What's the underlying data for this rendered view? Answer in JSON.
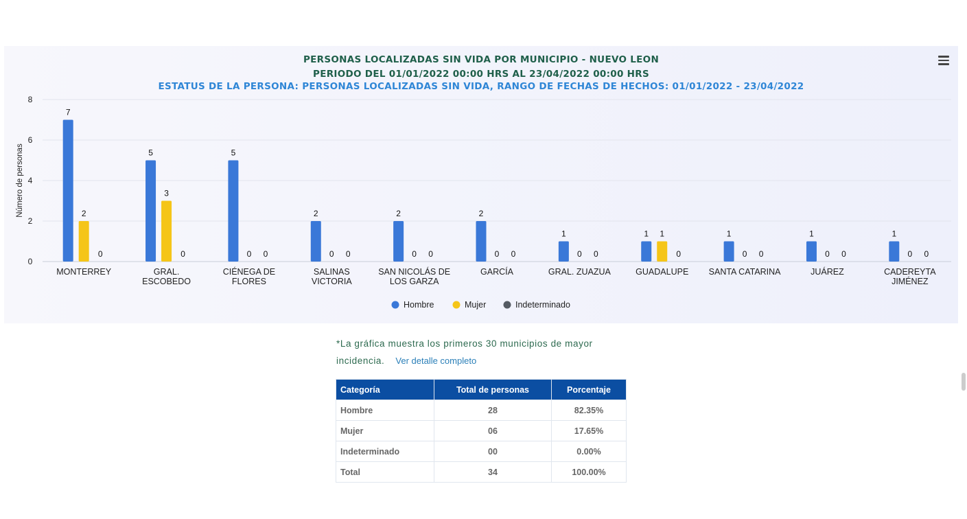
{
  "chart_data": {
    "type": "bar",
    "title": "PERSONAS LOCALIZADAS SIN VIDA POR MUNICIPIO - NUEVO LEON",
    "subtitle": "PERIODO DEL 01/01/2022 00:00 HRS AL 23/04/2022 00:00 HRS",
    "subtitle2": "ESTATUS DE LA PERSONA: PERSONAS LOCALIZADAS SIN VIDA, RANGO DE FECHAS DE HECHOS: 01/01/2022 - 23/04/2022",
    "ylabel": "Número de personas",
    "xlabel": "",
    "ylim": [
      0,
      8
    ],
    "yticks": [
      0,
      2,
      4,
      6,
      8
    ],
    "grid": true,
    "legend_position": "bottom-center",
    "categories": [
      [
        "MONTERREY"
      ],
      [
        "GRAL.",
        "ESCOBEDO"
      ],
      [
        "CIÉNEGA DE",
        "FLORES"
      ],
      [
        "SALINAS",
        "VICTORIA"
      ],
      [
        "SAN NICOLÁS DE",
        "LOS GARZA"
      ],
      [
        "GARCÍA"
      ],
      [
        "GRAL. ZUAZUA"
      ],
      [
        "GUADALUPE"
      ],
      [
        "SANTA CATARINA"
      ],
      [
        "JUÁREZ"
      ],
      [
        "CADEREYTA",
        "JIMÉNEZ"
      ]
    ],
    "series": [
      {
        "name": "Hombre",
        "color": "#3a78d8",
        "values": [
          7,
          5,
          5,
          2,
          2,
          2,
          1,
          1,
          1,
          1,
          1
        ]
      },
      {
        "name": "Mujer",
        "color": "#f5c518",
        "values": [
          2,
          3,
          0,
          0,
          0,
          0,
          0,
          1,
          0,
          0,
          0
        ]
      },
      {
        "name": "Indeterminado",
        "color": "#555b63",
        "values": [
          0,
          0,
          0,
          0,
          0,
          0,
          0,
          0,
          0,
          0,
          0
        ]
      }
    ]
  },
  "colors": {
    "title": "#1f5f4a",
    "subtitle2": "#2f86d6"
  },
  "note": {
    "text": "*La gráfica muestra los primeros 30 municipios de mayor incidencia.",
    "link": "Ver detalle completo"
  },
  "table": {
    "headers": [
      "Categoría",
      "Total de personas",
      "Porcentaje"
    ],
    "rows": [
      [
        "Hombre",
        "28",
        "82.35%"
      ],
      [
        "Mujer",
        "06",
        "17.65%"
      ],
      [
        "Indeterminado",
        "00",
        "0.00%"
      ],
      [
        "Total",
        "34",
        "100.00%"
      ]
    ]
  }
}
